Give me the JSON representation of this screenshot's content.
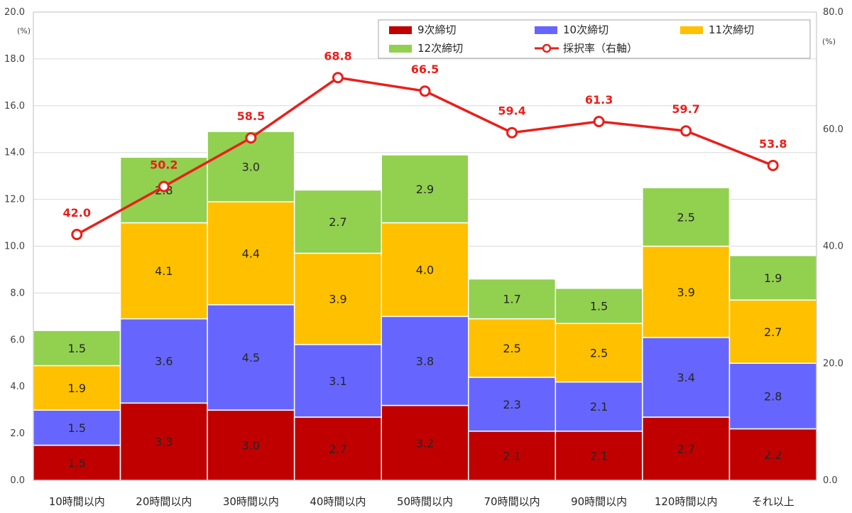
{
  "chart_data": {
    "type": "bar",
    "stacked": true,
    "categories": [
      "10時間以内",
      "20時間以内",
      "30時間以内",
      "40時間以内",
      "50時間以内",
      "70時間以内",
      "90時間以内",
      "120時間以内",
      "それ以上"
    ],
    "series": [
      {
        "name": "9次締切",
        "color": "#c00000",
        "values": [
          1.5,
          3.3,
          3.0,
          2.7,
          3.2,
          2.1,
          2.1,
          2.7,
          2.2
        ]
      },
      {
        "name": "10次締切",
        "color": "#6666ff",
        "values": [
          1.5,
          3.6,
          4.5,
          3.1,
          3.8,
          2.3,
          2.1,
          3.4,
          2.8
        ]
      },
      {
        "name": "11次締切",
        "color": "#ffc000",
        "values": [
          1.9,
          4.1,
          4.4,
          3.9,
          4.0,
          2.5,
          2.5,
          3.9,
          2.7
        ]
      },
      {
        "name": "12次締切",
        "color": "#92d050",
        "values": [
          1.5,
          2.8,
          3.0,
          2.7,
          2.9,
          1.7,
          1.5,
          2.5,
          1.9
        ]
      }
    ],
    "line_series": {
      "name": "採択率（右軸）",
      "color": "#e8201c",
      "axis": "right",
      "values": [
        42.0,
        50.2,
        58.5,
        68.8,
        66.5,
        59.4,
        61.3,
        59.7,
        53.8
      ]
    },
    "y_left": {
      "min": 0,
      "max": 20,
      "step": 2,
      "unit": "(%)",
      "tick_labels": [
        "0.0",
        "2.0",
        "4.0",
        "6.0",
        "8.0",
        "10.0",
        "12.0",
        "14.0",
        "16.0",
        "18.0",
        "20.0"
      ]
    },
    "y_right": {
      "min": 0,
      "max": 80,
      "step": 20,
      "unit": "(%)",
      "tick_labels": [
        "0.0",
        "20.0",
        "40.0",
        "60.0",
        "80.0"
      ]
    },
    "legend_position": "top-right",
    "grid": true
  }
}
